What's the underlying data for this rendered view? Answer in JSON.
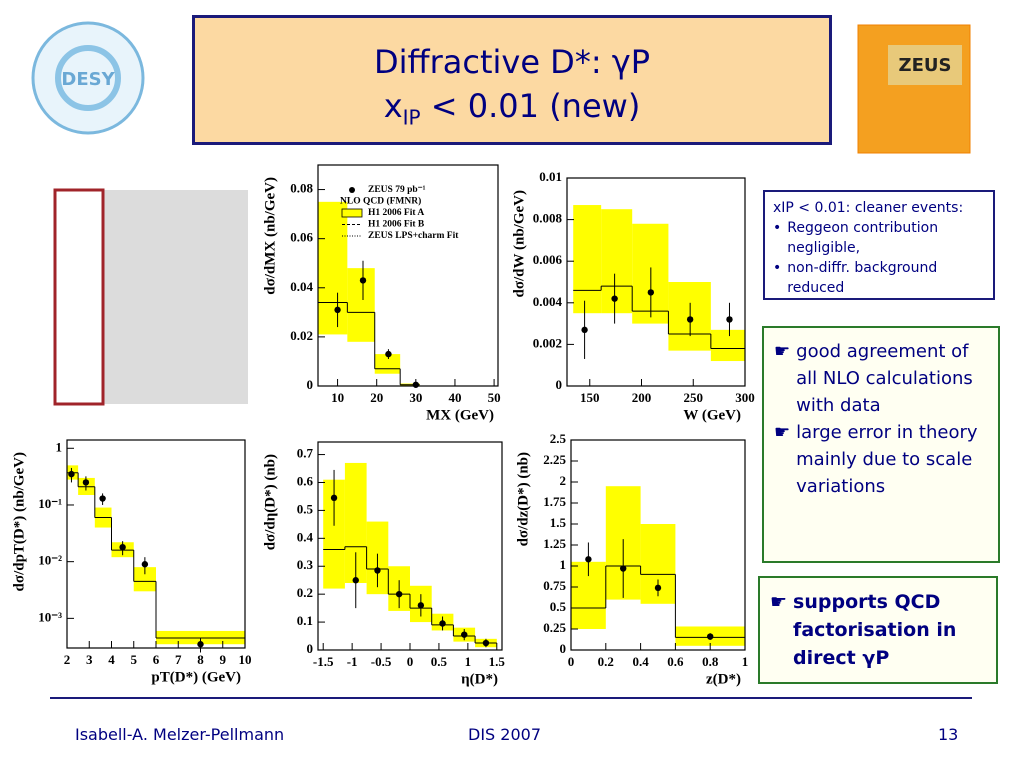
{
  "title": {
    "line1": "Diffractive D*: γP",
    "line2_main": "x",
    "line2_sub": "IP",
    "line2_rest": " < 0.01 (new)"
  },
  "logos": {
    "left": "DESY",
    "right": "ZEUS"
  },
  "box1": [
    "xIP < 0.01: cleaner events:",
    "Reggeon contribution negligible,",
    "non-diffr. background reduced"
  ],
  "box2": [
    "good agreement of all NLO calculations with data",
    "large error in theory mainly due to scale variations"
  ],
  "box3": "supports QCD factorisation in direct γP",
  "footer": {
    "author": "Isabell-A. Melzer-Pellmann",
    "event": "DIS 2007",
    "page": "13"
  },
  "chart_data": [
    {
      "type": "histogram",
      "x_label": "MX (GeV)",
      "y_label": "dσ/dMX (nb/GeV)",
      "xlim": [
        5,
        51
      ],
      "ylim": [
        0,
        0.09
      ],
      "xticks": [
        10,
        20,
        30,
        40,
        50
      ],
      "yticks": [
        0,
        0.02,
        0.04,
        0.06,
        0.08
      ],
      "bins": [
        5,
        12.5,
        19.5,
        26,
        31
      ],
      "band_low": [
        0.021,
        0.018,
        0.005,
        0
      ],
      "band_high": [
        0.075,
        0.048,
        0.013,
        0.001
      ],
      "nlo": [
        0.034,
        0.03,
        0.007,
        0.0005
      ],
      "points_x": [
        10,
        16.5,
        23,
        30
      ],
      "values": [
        0.031,
        0.043,
        0.013,
        0.0005
      ],
      "errors": [
        0.007,
        0.008,
        0.002,
        0.0005
      ],
      "band_color": "#ffff00",
      "legend": [
        "ZEUS 79 pb⁻¹",
        "NLO QCD (FMNR)",
        "H1 2006 Fit A",
        "H1 2006 Fit B",
        "ZEUS LPS+charm Fit"
      ]
    },
    {
      "type": "histogram",
      "x_label": "W (GeV)",
      "y_label": "dσ/dW (nb/GeV)",
      "xlim": [
        128,
        300
      ],
      "ylim": [
        0,
        0.01
      ],
      "xticks": [
        150,
        200,
        250,
        300
      ],
      "yticks": [
        0,
        0.002,
        0.004,
        0.006,
        0.008,
        0.01
      ],
      "bins": [
        134,
        161,
        191,
        226,
        267,
        300
      ],
      "band_low": [
        0.0035,
        0.0035,
        0.003,
        0.0017,
        0.0012
      ],
      "band_high": [
        0.0087,
        0.0085,
        0.0078,
        0.005,
        0.0027
      ],
      "nlo": [
        0.0046,
        0.0048,
        0.0036,
        0.0025,
        0.0018
      ],
      "points_x": [
        145,
        174,
        209,
        247,
        285
      ],
      "values": [
        0.0027,
        0.0042,
        0.0045,
        0.0032,
        0.0032
      ],
      "errors": [
        0.0014,
        0.0012,
        0.0012,
        0.0008,
        0.0008
      ],
      "band_color": "#ffff00"
    },
    {
      "type": "histogram",
      "x_label": "pT(D*) (GeV)",
      "y_label": "dσ/dpT(D*) (nb/GeV)",
      "log_y": true,
      "xlim": [
        2,
        10
      ],
      "ylim": [
        0.0003,
        1.4
      ],
      "xticks": [
        2,
        3,
        4,
        5,
        6,
        7,
        8,
        9,
        10
      ],
      "yticks": [
        1,
        {
          "value": 0.1,
          "label": "10⁻¹"
        },
        {
          "value": 0.01,
          "label": "10⁻²"
        },
        {
          "value": 0.001,
          "label": "10⁻³"
        }
      ],
      "bins": [
        2,
        2.5,
        3.25,
        4,
        5,
        6,
        10
      ],
      "band_low": [
        0.28,
        0.15,
        0.04,
        0.012,
        0.003,
        0.00035
      ],
      "band_high": [
        0.5,
        0.3,
        0.09,
        0.022,
        0.008,
        0.0006
      ],
      "nlo": [
        0.37,
        0.21,
        0.06,
        0.016,
        0.0045,
        0.00045
      ],
      "points_x": [
        2.2,
        2.85,
        3.6,
        4.5,
        5.5,
        8
      ],
      "values": [
        0.35,
        0.25,
        0.13,
        0.018,
        0.009,
        0.00035
      ],
      "errors": [
        0.1,
        0.07,
        0.03,
        0.005,
        0.003,
        0.0001
      ],
      "band_color": "#ffff00"
    },
    {
      "type": "histogram",
      "x_label": "η(D*)",
      "y_label": "dσ/dη(D*) (nb)",
      "xlim": [
        -1.59,
        1.59
      ],
      "ylim": [
        0,
        0.745
      ],
      "xticks": [
        -1.5,
        -1,
        -0.5,
        0,
        0.5,
        1,
        1.5
      ],
      "yticks": [
        0,
        0.1,
        0.2,
        0.3,
        0.4,
        0.5,
        0.6,
        0.7
      ],
      "bins": [
        -1.5,
        -1.125,
        -0.75,
        -0.375,
        0,
        0.375,
        0.75,
        1.125,
        1.5
      ],
      "band_low": [
        0.22,
        0.24,
        0.2,
        0.14,
        0.1,
        0.07,
        0.03,
        0.01
      ],
      "band_high": [
        0.61,
        0.67,
        0.46,
        0.3,
        0.23,
        0.13,
        0.08,
        0.04
      ],
      "nlo": [
        0.36,
        0.37,
        0.29,
        0.2,
        0.15,
        0.09,
        0.05,
        0.025
      ],
      "points_x": [
        -1.3125,
        -0.9375,
        -0.5625,
        -0.1875,
        0.1875,
        0.5625,
        0.9375,
        1.3125
      ],
      "values": [
        0.545,
        0.25,
        0.285,
        0.2,
        0.16,
        0.095,
        0.055,
        0.025
      ],
      "errors": [
        0.1,
        0.1,
        0.06,
        0.05,
        0.04,
        0.025,
        0.02,
        0.015
      ],
      "band_color": "#ffff00"
    },
    {
      "type": "histogram",
      "x_label": "z(D*)",
      "y_label": "dσ/dz(D*) (nb)",
      "xlim": [
        0,
        1
      ],
      "ylim": [
        0,
        2.5
      ],
      "xticks": [
        0,
        0.2,
        0.4,
        0.6,
        0.8,
        1
      ],
      "yticks": [
        0,
        0.25,
        0.5,
        0.75,
        1,
        1.25,
        1.5,
        1.75,
        2,
        2.25,
        2.5
      ],
      "bins": [
        0,
        0.2,
        0.4,
        0.6,
        1
      ],
      "band_low": [
        0.25,
        0.6,
        0.55,
        0.05
      ],
      "band_high": [
        1.05,
        1.95,
        1.5,
        0.28
      ],
      "nlo": [
        0.5,
        1.0,
        0.9,
        0.15
      ],
      "points_x": [
        0.1,
        0.3,
        0.5,
        0.8
      ],
      "values": [
        1.08,
        0.97,
        0.74,
        0.16
      ],
      "errors": [
        0.2,
        0.35,
        0.1,
        0.04
      ],
      "band_color": "#ffff00"
    }
  ]
}
